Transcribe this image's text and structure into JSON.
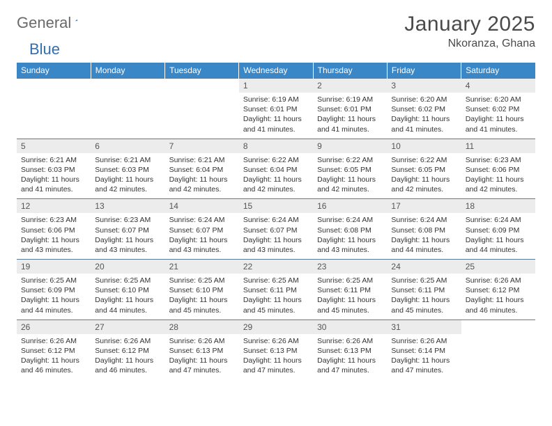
{
  "logo": {
    "part1": "General",
    "part2": "Blue"
  },
  "title": "January 2025",
  "location": "Nkoranza, Ghana",
  "colors": {
    "header_bg": "#3a87c8",
    "header_text": "#ffffff",
    "daynum_bg": "#ececec",
    "daynum_text": "#555555",
    "border": "#5a7a9a",
    "body_text": "#333333",
    "logo_gray": "#6a6a6a",
    "logo_blue": "#2f6fb3"
  },
  "typography": {
    "title_fontsize": 30,
    "location_fontsize": 16,
    "header_fontsize": 12,
    "daynum_fontsize": 12,
    "cell_fontsize": 10.5
  },
  "weekdays": [
    "Sunday",
    "Monday",
    "Tuesday",
    "Wednesday",
    "Thursday",
    "Friday",
    "Saturday"
  ],
  "weeks": [
    [
      null,
      null,
      null,
      {
        "n": "1",
        "sunrise": "6:19 AM",
        "sunset": "6:01 PM",
        "dl_h": "11",
        "dl_m": "41"
      },
      {
        "n": "2",
        "sunrise": "6:19 AM",
        "sunset": "6:01 PM",
        "dl_h": "11",
        "dl_m": "41"
      },
      {
        "n": "3",
        "sunrise": "6:20 AM",
        "sunset": "6:02 PM",
        "dl_h": "11",
        "dl_m": "41"
      },
      {
        "n": "4",
        "sunrise": "6:20 AM",
        "sunset": "6:02 PM",
        "dl_h": "11",
        "dl_m": "41"
      }
    ],
    [
      {
        "n": "5",
        "sunrise": "6:21 AM",
        "sunset": "6:03 PM",
        "dl_h": "11",
        "dl_m": "41"
      },
      {
        "n": "6",
        "sunrise": "6:21 AM",
        "sunset": "6:03 PM",
        "dl_h": "11",
        "dl_m": "42"
      },
      {
        "n": "7",
        "sunrise": "6:21 AM",
        "sunset": "6:04 PM",
        "dl_h": "11",
        "dl_m": "42"
      },
      {
        "n": "8",
        "sunrise": "6:22 AM",
        "sunset": "6:04 PM",
        "dl_h": "11",
        "dl_m": "42"
      },
      {
        "n": "9",
        "sunrise": "6:22 AM",
        "sunset": "6:05 PM",
        "dl_h": "11",
        "dl_m": "42"
      },
      {
        "n": "10",
        "sunrise": "6:22 AM",
        "sunset": "6:05 PM",
        "dl_h": "11",
        "dl_m": "42"
      },
      {
        "n": "11",
        "sunrise": "6:23 AM",
        "sunset": "6:06 PM",
        "dl_h": "11",
        "dl_m": "42"
      }
    ],
    [
      {
        "n": "12",
        "sunrise": "6:23 AM",
        "sunset": "6:06 PM",
        "dl_h": "11",
        "dl_m": "43"
      },
      {
        "n": "13",
        "sunrise": "6:23 AM",
        "sunset": "6:07 PM",
        "dl_h": "11",
        "dl_m": "43"
      },
      {
        "n": "14",
        "sunrise": "6:24 AM",
        "sunset": "6:07 PM",
        "dl_h": "11",
        "dl_m": "43"
      },
      {
        "n": "15",
        "sunrise": "6:24 AM",
        "sunset": "6:07 PM",
        "dl_h": "11",
        "dl_m": "43"
      },
      {
        "n": "16",
        "sunrise": "6:24 AM",
        "sunset": "6:08 PM",
        "dl_h": "11",
        "dl_m": "43"
      },
      {
        "n": "17",
        "sunrise": "6:24 AM",
        "sunset": "6:08 PM",
        "dl_h": "11",
        "dl_m": "44"
      },
      {
        "n": "18",
        "sunrise": "6:24 AM",
        "sunset": "6:09 PM",
        "dl_h": "11",
        "dl_m": "44"
      }
    ],
    [
      {
        "n": "19",
        "sunrise": "6:25 AM",
        "sunset": "6:09 PM",
        "dl_h": "11",
        "dl_m": "44"
      },
      {
        "n": "20",
        "sunrise": "6:25 AM",
        "sunset": "6:10 PM",
        "dl_h": "11",
        "dl_m": "44"
      },
      {
        "n": "21",
        "sunrise": "6:25 AM",
        "sunset": "6:10 PM",
        "dl_h": "11",
        "dl_m": "45"
      },
      {
        "n": "22",
        "sunrise": "6:25 AM",
        "sunset": "6:11 PM",
        "dl_h": "11",
        "dl_m": "45"
      },
      {
        "n": "23",
        "sunrise": "6:25 AM",
        "sunset": "6:11 PM",
        "dl_h": "11",
        "dl_m": "45"
      },
      {
        "n": "24",
        "sunrise": "6:25 AM",
        "sunset": "6:11 PM",
        "dl_h": "11",
        "dl_m": "45"
      },
      {
        "n": "25",
        "sunrise": "6:26 AM",
        "sunset": "6:12 PM",
        "dl_h": "11",
        "dl_m": "46"
      }
    ],
    [
      {
        "n": "26",
        "sunrise": "6:26 AM",
        "sunset": "6:12 PM",
        "dl_h": "11",
        "dl_m": "46"
      },
      {
        "n": "27",
        "sunrise": "6:26 AM",
        "sunset": "6:12 PM",
        "dl_h": "11",
        "dl_m": "46"
      },
      {
        "n": "28",
        "sunrise": "6:26 AM",
        "sunset": "6:13 PM",
        "dl_h": "11",
        "dl_m": "47"
      },
      {
        "n": "29",
        "sunrise": "6:26 AM",
        "sunset": "6:13 PM",
        "dl_h": "11",
        "dl_m": "47"
      },
      {
        "n": "30",
        "sunrise": "6:26 AM",
        "sunset": "6:13 PM",
        "dl_h": "11",
        "dl_m": "47"
      },
      {
        "n": "31",
        "sunrise": "6:26 AM",
        "sunset": "6:14 PM",
        "dl_h": "11",
        "dl_m": "47"
      },
      null
    ]
  ],
  "labels": {
    "sunrise": "Sunrise:",
    "sunset": "Sunset:",
    "daylight": "Daylight:",
    "hours": "hours",
    "and": "and",
    "minutes": "minutes."
  }
}
